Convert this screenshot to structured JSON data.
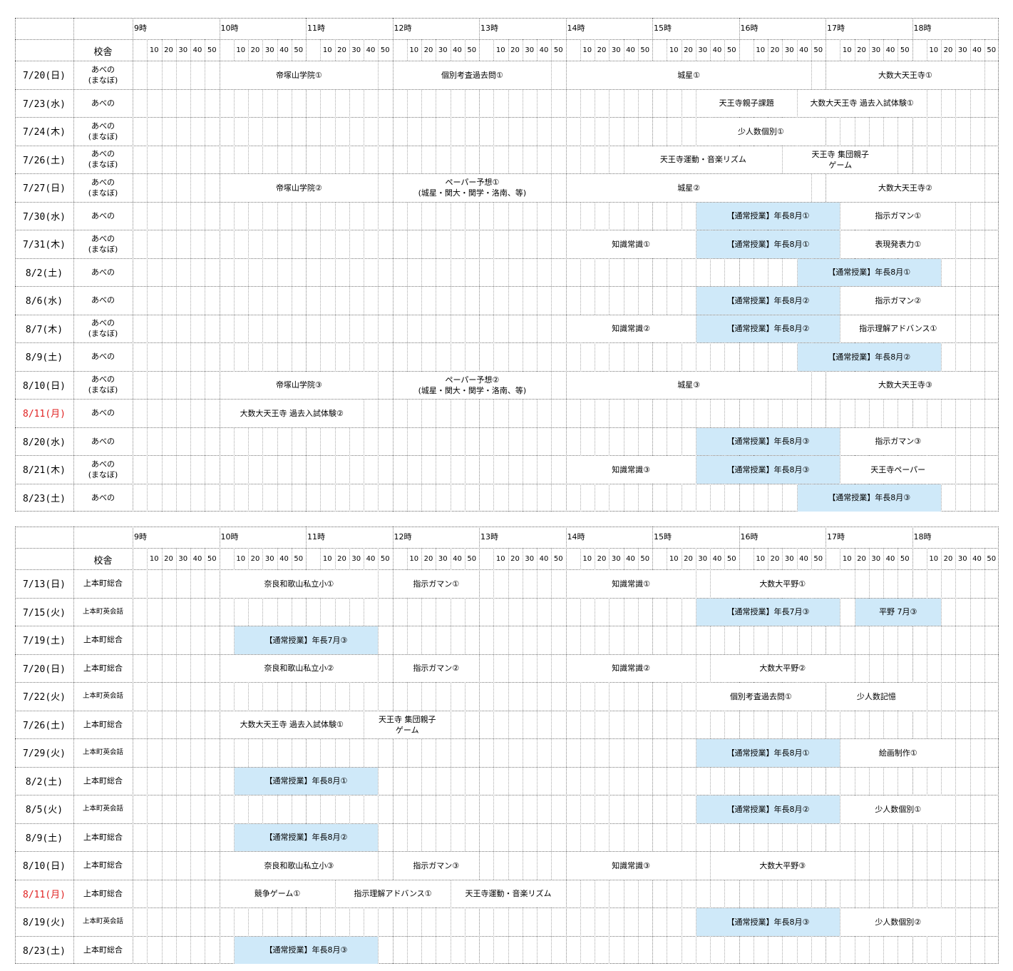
{
  "colors": {
    "highlight": "#cfe9f9",
    "holiday": "#e02020",
    "grid": "#888888"
  },
  "hours": [
    "9時",
    "10時",
    "11時",
    "12時",
    "13時",
    "14時",
    "15時",
    "16時",
    "17時",
    "18時"
  ],
  "minutes": [
    "10",
    "20",
    "30",
    "40",
    "50"
  ],
  "campus_header": "校舎",
  "table1": {
    "rows": [
      {
        "date": "7/20(日)",
        "holiday": false,
        "campus": "あべの\n(まなぼ)",
        "small": false,
        "events": [
          {
            "label": "帝塚山学院①",
            "start": "10:00",
            "end": "11:50",
            "blue": false
          },
          {
            "label": "個別考査過去問①",
            "start": "12:00",
            "end": "13:50",
            "blue": false
          },
          {
            "label": "城星①",
            "start": "14:00",
            "end": "16:50",
            "blue": false
          },
          {
            "label": "大数大天王寺①",
            "start": "17:00",
            "end": "18:50",
            "blue": false
          }
        ]
      },
      {
        "date": "7/23(水)",
        "holiday": false,
        "campus": "あべの",
        "small": false,
        "events": [
          {
            "label": "天王寺親子課題",
            "start": "15:30",
            "end": "16:40",
            "blue": false
          },
          {
            "label": "大数大天王寺 過去入試体験①",
            "start": "16:40",
            "end": "18:10",
            "blue": false
          }
        ]
      },
      {
        "date": "7/24(木)",
        "holiday": false,
        "campus": "あべの\n(まなぼ)",
        "small": false,
        "events": [
          {
            "label": "少人数個別①",
            "start": "15:30",
            "end": "17:00",
            "blue": false
          }
        ]
      },
      {
        "date": "7/26(土)",
        "holiday": false,
        "campus": "あべの\n(まなぼ)",
        "small": false,
        "events": [
          {
            "label": "天王寺運動・音楽リズム",
            "start": "14:40",
            "end": "16:30",
            "blue": false
          },
          {
            "label": "天王寺 集団親子\nゲーム",
            "start": "16:30",
            "end": "17:50",
            "blue": false
          }
        ]
      },
      {
        "date": "7/27(日)",
        "holiday": false,
        "campus": "あべの\n(まなぼ)",
        "small": false,
        "events": [
          {
            "label": "帝塚山学院②",
            "start": "10:00",
            "end": "11:50",
            "blue": false
          },
          {
            "label": "ペーパー予想①\n(城星・関大・関学・洛南、等)",
            "start": "12:00",
            "end": "13:50",
            "blue": false
          },
          {
            "label": "城星②",
            "start": "14:00",
            "end": "16:50",
            "blue": false
          },
          {
            "label": "大数大天王寺②",
            "start": "17:00",
            "end": "18:50",
            "blue": false
          }
        ]
      },
      {
        "date": "7/30(水)",
        "holiday": false,
        "campus": "あべの",
        "small": false,
        "events": [
          {
            "label": "【通常授業】年長8月①",
            "start": "15:30",
            "end": "17:10",
            "blue": true
          },
          {
            "label": "指示ガマン①",
            "start": "17:10",
            "end": "18:30",
            "blue": false
          }
        ]
      },
      {
        "date": "7/31(木)",
        "holiday": false,
        "campus": "あべの\n(まなぼ)",
        "small": false,
        "events": [
          {
            "label": "知識常識①",
            "start": "14:00",
            "end": "15:30",
            "blue": false
          },
          {
            "label": "【通常授業】年長8月①",
            "start": "15:30",
            "end": "17:10",
            "blue": true
          },
          {
            "label": "表現発表力①",
            "start": "17:10",
            "end": "18:30",
            "blue": false
          }
        ]
      },
      {
        "date": "8/2(土)",
        "holiday": false,
        "campus": "あべの",
        "small": false,
        "events": [
          {
            "label": "【通常授業】年長8月①",
            "start": "16:40",
            "end": "18:20",
            "blue": true
          }
        ]
      },
      {
        "date": "8/6(水)",
        "holiday": false,
        "campus": "あべの",
        "small": false,
        "events": [
          {
            "label": "【通常授業】年長8月②",
            "start": "15:30",
            "end": "17:10",
            "blue": true
          },
          {
            "label": "指示ガマン②",
            "start": "17:10",
            "end": "18:30",
            "blue": false
          }
        ]
      },
      {
        "date": "8/7(木)",
        "holiday": false,
        "campus": "あべの\n(まなぼ)",
        "small": false,
        "events": [
          {
            "label": "知識常識②",
            "start": "14:00",
            "end": "15:30",
            "blue": false
          },
          {
            "label": "【通常授業】年長8月②",
            "start": "15:30",
            "end": "17:10",
            "blue": true
          },
          {
            "label": "指示理解アドバンス①",
            "start": "17:10",
            "end": "18:30",
            "blue": false
          }
        ]
      },
      {
        "date": "8/9(土)",
        "holiday": false,
        "campus": "あべの",
        "small": false,
        "events": [
          {
            "label": "【通常授業】年長8月②",
            "start": "16:40",
            "end": "18:20",
            "blue": true
          }
        ]
      },
      {
        "date": "8/10(日)",
        "holiday": false,
        "campus": "あべの\n(まなぼ)",
        "small": false,
        "events": [
          {
            "label": "帝塚山学院③",
            "start": "10:00",
            "end": "11:50",
            "blue": false
          },
          {
            "label": "ペーパー予想②\n(城星・関大・関学・洛南、等)",
            "start": "12:00",
            "end": "13:50",
            "blue": false
          },
          {
            "label": "城星③",
            "start": "14:00",
            "end": "16:50",
            "blue": false
          },
          {
            "label": "大数大天王寺③",
            "start": "17:00",
            "end": "18:50",
            "blue": false
          }
        ]
      },
      {
        "date": "8/11(月)",
        "holiday": true,
        "campus": "あべの",
        "small": false,
        "events": [
          {
            "label": "大数大天王寺 過去入試体験②",
            "start": "10:00",
            "end": "11:40",
            "blue": false
          }
        ]
      },
      {
        "date": "8/20(水)",
        "holiday": false,
        "campus": "あべの",
        "small": false,
        "events": [
          {
            "label": "【通常授業】年長8月③",
            "start": "15:30",
            "end": "17:10",
            "blue": true
          },
          {
            "label": "指示ガマン③",
            "start": "17:10",
            "end": "18:30",
            "blue": false
          }
        ]
      },
      {
        "date": "8/21(木)",
        "holiday": false,
        "campus": "あべの\n(まなぼ)",
        "small": false,
        "events": [
          {
            "label": "知識常識③",
            "start": "14:00",
            "end": "15:30",
            "blue": false
          },
          {
            "label": "【通常授業】年長8月③",
            "start": "15:30",
            "end": "17:10",
            "blue": true
          },
          {
            "label": "天王寺ペーパー",
            "start": "17:10",
            "end": "18:30",
            "blue": false
          }
        ]
      },
      {
        "date": "8/23(土)",
        "holiday": false,
        "campus": "あべの",
        "small": false,
        "events": [
          {
            "label": "【通常授業】年長8月③",
            "start": "16:40",
            "end": "18:20",
            "blue": true
          }
        ]
      }
    ]
  },
  "table2": {
    "rows": [
      {
        "date": "7/13(日)",
        "holiday": false,
        "campus": "上本町総合",
        "small": false,
        "events": [
          {
            "label": "奈良和歌山私立小①",
            "start": "10:00",
            "end": "11:50",
            "blue": false
          },
          {
            "label": "指示ガマン①",
            "start": "12:00",
            "end": "13:00",
            "blue": false
          },
          {
            "label": "知識常識①",
            "start": "14:00",
            "end": "15:30",
            "blue": false
          },
          {
            "label": "大数大平野①",
            "start": "15:40",
            "end": "17:20",
            "blue": false
          }
        ]
      },
      {
        "date": "7/15(火)",
        "holiday": false,
        "campus": "上本町英会話",
        "small": true,
        "events": [
          {
            "label": "【通常授業】年長7月③",
            "start": "15:30",
            "end": "17:10",
            "blue": true
          },
          {
            "label": "平野 7月③",
            "start": "17:20",
            "end": "18:20",
            "blue": true
          }
        ]
      },
      {
        "date": "7/19(土)",
        "holiday": false,
        "campus": "上本町総合",
        "small": false,
        "events": [
          {
            "label": "【通常授業】年長7月③",
            "start": "10:10",
            "end": "11:50",
            "blue": true
          }
        ]
      },
      {
        "date": "7/20(日)",
        "holiday": false,
        "campus": "上本町総合",
        "small": false,
        "events": [
          {
            "label": "奈良和歌山私立小②",
            "start": "10:00",
            "end": "11:50",
            "blue": false
          },
          {
            "label": "指示ガマン②",
            "start": "12:00",
            "end": "13:00",
            "blue": false
          },
          {
            "label": "知識常識②",
            "start": "14:00",
            "end": "15:30",
            "blue": false
          },
          {
            "label": "大数大平野②",
            "start": "15:40",
            "end": "17:20",
            "blue": false
          }
        ]
      },
      {
        "date": "7/22(火)",
        "holiday": false,
        "campus": "上本町英会話",
        "small": true,
        "events": [
          {
            "label": "個別考査過去問①",
            "start": "15:30",
            "end": "17:00",
            "blue": false
          },
          {
            "label": "少人数記憶",
            "start": "17:00",
            "end": "18:10",
            "blue": false
          }
        ]
      },
      {
        "date": "7/26(土)",
        "holiday": false,
        "campus": "上本町総合",
        "small": false,
        "events": [
          {
            "label": "大数大天王寺 過去入試体験①",
            "start": "10:00",
            "end": "11:40",
            "blue": false
          },
          {
            "label": "天王寺 集団親子\nゲーム",
            "start": "11:40",
            "end": "12:40",
            "blue": false
          }
        ]
      },
      {
        "date": "7/29(火)",
        "holiday": false,
        "campus": "上本町英会話",
        "small": true,
        "events": [
          {
            "label": "【通常授業】年長8月①",
            "start": "15:30",
            "end": "17:10",
            "blue": true
          },
          {
            "label": "絵画制作①",
            "start": "17:10",
            "end": "18:30",
            "blue": false
          }
        ]
      },
      {
        "date": "8/2(土)",
        "holiday": false,
        "campus": "上本町総合",
        "small": false,
        "events": [
          {
            "label": "【通常授業】年長8月①",
            "start": "10:10",
            "end": "11:50",
            "blue": true
          }
        ]
      },
      {
        "date": "8/5(火)",
        "holiday": false,
        "campus": "上本町英会話",
        "small": true,
        "events": [
          {
            "label": "【通常授業】年長8月②",
            "start": "15:30",
            "end": "17:10",
            "blue": true
          },
          {
            "label": "少人数個別①",
            "start": "17:10",
            "end": "18:30",
            "blue": false
          }
        ]
      },
      {
        "date": "8/9(土)",
        "holiday": false,
        "campus": "上本町総合",
        "small": false,
        "events": [
          {
            "label": "【通常授業】年長8月②",
            "start": "10:10",
            "end": "11:50",
            "blue": true
          }
        ]
      },
      {
        "date": "8/10(日)",
        "holiday": false,
        "campus": "上本町総合",
        "small": false,
        "events": [
          {
            "label": "奈良和歌山私立小③",
            "start": "10:00",
            "end": "11:50",
            "blue": false
          },
          {
            "label": "指示ガマン③",
            "start": "12:00",
            "end": "13:00",
            "blue": false
          },
          {
            "label": "知識常識③",
            "start": "14:00",
            "end": "15:30",
            "blue": false
          },
          {
            "label": "大数大平野③",
            "start": "15:40",
            "end": "17:20",
            "blue": false
          }
        ]
      },
      {
        "date": "8/11(月)",
        "holiday": true,
        "campus": "上本町総合",
        "small": false,
        "events": [
          {
            "label": "競争ゲーム①",
            "start": "10:00",
            "end": "11:20",
            "blue": false
          },
          {
            "label": "指示理解アドバンス①",
            "start": "11:20",
            "end": "12:40",
            "blue": false
          },
          {
            "label": "天王寺運動・音楽リズム",
            "start": "12:40",
            "end": "14:00",
            "blue": false
          }
        ]
      },
      {
        "date": "8/19(火)",
        "holiday": false,
        "campus": "上本町英会話",
        "small": true,
        "events": [
          {
            "label": "【通常授業】年長8月③",
            "start": "15:30",
            "end": "17:10",
            "blue": true
          },
          {
            "label": "少人数個別②",
            "start": "17:10",
            "end": "18:30",
            "blue": false
          }
        ]
      },
      {
        "date": "8/23(土)",
        "holiday": false,
        "campus": "上本町総合",
        "small": false,
        "events": [
          {
            "label": "【通常授業】年長8月③",
            "start": "10:10",
            "end": "11:50",
            "blue": true
          }
        ]
      }
    ]
  }
}
